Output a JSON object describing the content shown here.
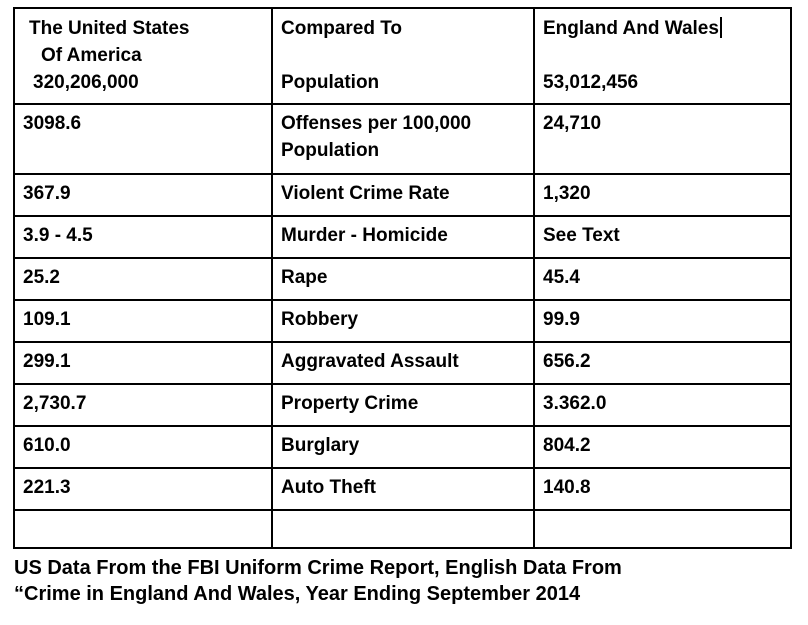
{
  "table": {
    "header": {
      "us": {
        "line1": "The United States",
        "line2": "Of America",
        "line3": "320,206,000"
      },
      "label": {
        "line1": "Compared To",
        "line2": "Population"
      },
      "ew": {
        "line1": "England And Wales",
        "line2": "53,012,456"
      }
    },
    "rows": [
      {
        "us": "3098.6",
        "label": "Offenses per 100,000 Population",
        "ew": "24,710"
      },
      {
        "us": "367.9",
        "label": "Violent Crime Rate",
        "ew": "1,320"
      },
      {
        "us": "3.9 - 4.5",
        "label": "Murder - Homicide",
        "ew": "See Text"
      },
      {
        "us": "25.2",
        "label": "Rape",
        "ew": "45.4"
      },
      {
        "us": "109.1",
        "label": "Robbery",
        "ew": "99.9"
      },
      {
        "us": "299.1",
        "label": "Aggravated Assault",
        "ew": "656.2"
      },
      {
        "us": "2,730.7",
        "label": "Property Crime",
        "ew": "3.362.0"
      },
      {
        "us": "610.0",
        "label": "Burglary",
        "ew": "804.2"
      },
      {
        "us": "221.3",
        "label": "Auto Theft",
        "ew": "140.8"
      },
      {
        "us": "",
        "label": "",
        "ew": ""
      }
    ]
  },
  "footer": {
    "line1": "US Data From the FBI Uniform Crime Report, English Data From",
    "line2": "“Crime in England And Wales, Year Ending September 2014"
  },
  "colors": {
    "border": "#000000",
    "background": "#ffffff",
    "text": "#000000"
  }
}
